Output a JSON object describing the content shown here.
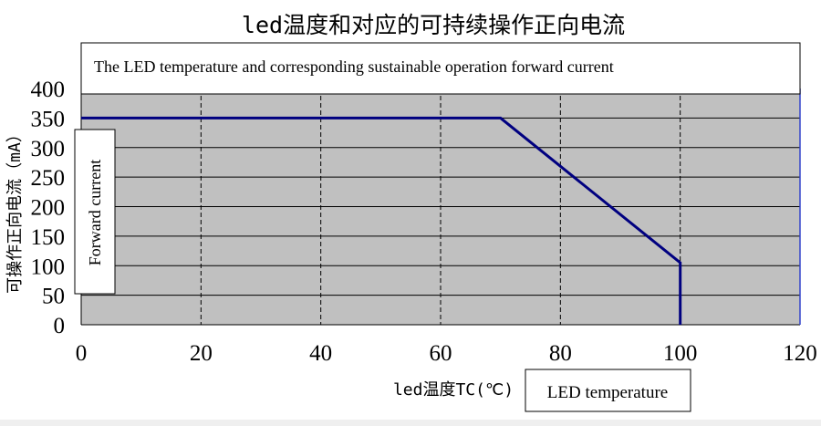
{
  "chart_data": {
    "type": "line",
    "title": "led温度和对应的可持续操作正向电流",
    "subtitle": "The LED temperature and corresponding sustainable operation forward current",
    "xlabel": "led温度TC(℃)",
    "xlabel_en": "LED temperature",
    "ylabel": "可操作正向电流（mA）",
    "ylabel_en": "Forward current",
    "xlim": [
      0,
      120
    ],
    "ylim": [
      0,
      400
    ],
    "x_ticks": [
      "0",
      "20",
      "40",
      "60",
      "80",
      "100",
      "120"
    ],
    "y_ticks": [
      "0",
      "50",
      "100",
      "150",
      "200",
      "250",
      "300",
      "350",
      "400"
    ],
    "grid": true,
    "series": [
      {
        "x": [
          0,
          70,
          100,
          100
        ],
        "y": [
          350,
          350,
          105,
          0
        ]
      }
    ],
    "colors": {
      "plot_background": "#c0c0c0",
      "line": "#000080"
    }
  }
}
